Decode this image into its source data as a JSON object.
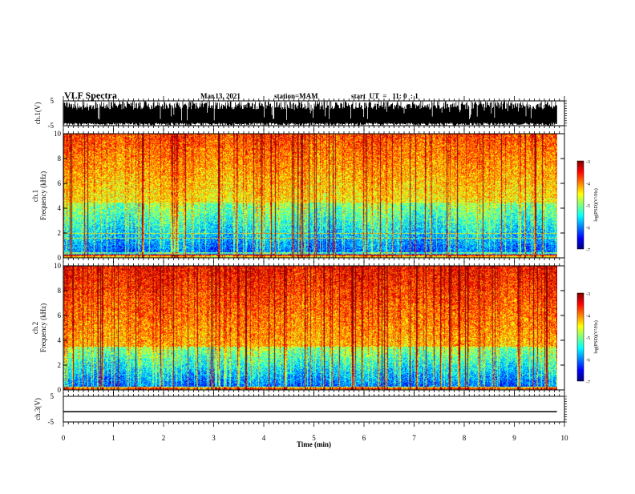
{
  "header": {
    "title": "VLF Spectra",
    "date": "Mar.13, 2021",
    "station": "station=MAM",
    "start": "start  UT  =   11: 0  : 1"
  },
  "colors": {
    "scale": [
      "#00007f",
      "#0000ff",
      "#007fff",
      "#00ffff",
      "#7fff7f",
      "#ffff00",
      "#ff7f00",
      "#ff0000",
      "#7f0000"
    ],
    "trace": "#000000"
  },
  "chart_data": [
    {
      "type": "line",
      "name": "waveform-ch1",
      "ylabel": "ch.1(V)",
      "ylim": [
        -5,
        5
      ],
      "yticks": [
        "5",
        "-5"
      ],
      "description_of_signal": "dense impulsive noise filling most of the range"
    },
    {
      "type": "heatmap",
      "name": "spectrogram-ch1",
      "ylabel": "ch.1\nFrequency (kHz)",
      "ylabel_lines": [
        "ch.1",
        "Frequency (kHz)"
      ],
      "ylim": [
        0,
        10
      ],
      "yticks": [
        "0",
        "2",
        "4",
        "6",
        "8",
        "10"
      ],
      "colorbar": {
        "label": "log(PSD)(V²/Hz)",
        "range": [
          -7,
          -3
        ],
        "ticks": [
          "-3",
          "-4",
          "-5",
          "-6",
          "-7"
        ]
      },
      "low_band_top_khz": 4.5
    },
    {
      "type": "heatmap",
      "name": "spectrogram-ch2",
      "ylabel": "ch.2\nFrequency (kHz)",
      "ylabel_lines": [
        "ch.2",
        "Frequency (kHz)"
      ],
      "ylim": [
        0,
        10
      ],
      "yticks": [
        "0",
        "2",
        "4",
        "6",
        "8",
        "10"
      ],
      "colorbar": {
        "label": "log(PSD)(V²/Hz)",
        "range": [
          -7,
          -3
        ],
        "ticks": [
          "-3",
          "-4",
          "-5",
          "-6",
          "-7"
        ]
      },
      "low_band_top_khz": 3.5
    },
    {
      "type": "line",
      "name": "waveform-ch3",
      "ylabel": "ch.3(V)",
      "ylim": [
        -5,
        5
      ],
      "yticks": [
        "5",
        "-5"
      ],
      "x": [
        0,
        9.85
      ],
      "y": [
        -1,
        -1
      ]
    }
  ],
  "xaxis": {
    "label": "Time  (min)",
    "ticks": [
      "0",
      "1",
      "2",
      "3",
      "4",
      "5",
      "6",
      "7",
      "8",
      "9",
      "10"
    ],
    "range": [
      0,
      10
    ],
    "data_end_min": 9.85
  }
}
